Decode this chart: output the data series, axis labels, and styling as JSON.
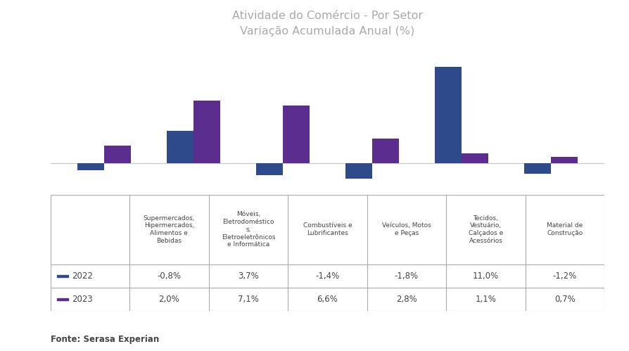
{
  "title": "Atividade do Comércio - Por Setor\nVariação Acumulada Anual (%)",
  "title_color": "#aaaaaa",
  "background_color": "#ffffff",
  "bar_color_2022": "#2E4A8B",
  "bar_color_2023": "#5B2D8E",
  "categories": [
    "Supermercados,\nHipermercados,\nAlimentos e\nBebidas",
    "Móveis,\nEletrodoméstico\ns,\nEletroeletrônicos\ne Informática",
    "Combustíveis e\nLubrificantes",
    "Veículos, Motos\ne Peças",
    "Tecidos,\nVestuário,\nCalçados e\nAcessórios",
    "Material de\nConstrução"
  ],
  "values_2022": [
    -0.8,
    3.7,
    -1.4,
    -1.8,
    11.0,
    -1.2
  ],
  "values_2023": [
    2.0,
    7.1,
    6.6,
    2.8,
    1.1,
    0.7
  ],
  "labels_2022": [
    "-0,8%",
    "3,7%",
    "-1,4%",
    "-1,8%",
    "11,0%",
    "-1,2%"
  ],
  "labels_2023": [
    "2,0%",
    "7,1%",
    "6,6%",
    "2,8%",
    "1,1%",
    "0,7%"
  ],
  "legend_2022": "2022",
  "legend_2023": "2023",
  "source_text": "Fonte: Serasa Experian",
  "ylim": [
    -3,
    13
  ],
  "zero_line_color": "#cccccc",
  "table_border_color": "#aaaaaa",
  "text_color": "#444444"
}
